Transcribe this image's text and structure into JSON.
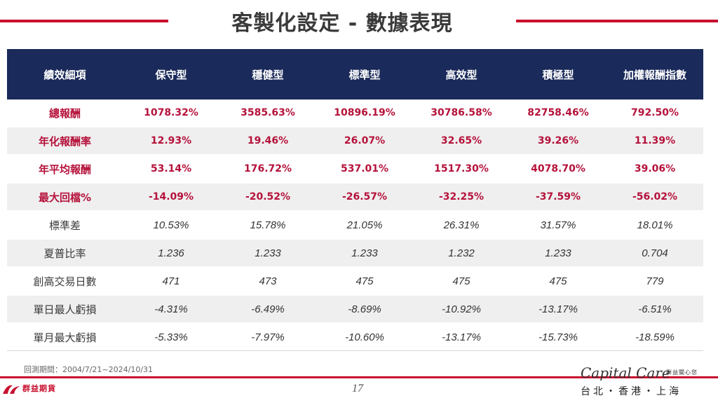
{
  "title": "客製化設定 - 數據表現",
  "table": {
    "headers": [
      "績效細項",
      "保守型",
      "穩健型",
      "標準型",
      "高效型",
      "積極型",
      "加權報酬指數"
    ],
    "rows": [
      {
        "label": "總報酬",
        "values": [
          "1078.32%",
          "3585.63%",
          "10896.19%",
          "30786.58%",
          "82758.46%",
          "792.50%"
        ]
      },
      {
        "label": "年化報酬率",
        "values": [
          "12.93%",
          "19.46%",
          "26.07%",
          "32.65%",
          "39.26%",
          "11.39%"
        ]
      },
      {
        "label": "年平均報酬",
        "values": [
          "53.14%",
          "176.72%",
          "537.01%",
          "1517.30%",
          "4078.70%",
          "39.06%"
        ]
      },
      {
        "label": "最大回檔%",
        "values": [
          "-14.09%",
          "-20.52%",
          "-26.57%",
          "-32.25%",
          "-37.59%",
          "-56.02%"
        ]
      },
      {
        "label": "標準差",
        "values": [
          "10.53%",
          "15.78%",
          "21.05%",
          "26.31%",
          "31.57%",
          "18.01%"
        ]
      },
      {
        "label": "夏普比率",
        "values": [
          "1.236",
          "1.233",
          "1.233",
          "1.232",
          "1.233",
          "0.704"
        ]
      },
      {
        "label": "創高交易日數",
        "values": [
          "471",
          "473",
          "475",
          "475",
          "475",
          "779"
        ]
      },
      {
        "label": "單日最人虧損",
        "values": [
          "-4.31%",
          "-6.49%",
          "-8.69%",
          "-10.92%",
          "-13.17%",
          "-6.51%"
        ]
      },
      {
        "label": "單月最大虧損",
        "values": [
          "-5.33%",
          "-7.97%",
          "-10.60%",
          "-13.17%",
          "-15.73%",
          "-18.59%"
        ]
      }
    ]
  },
  "footnote": "回測期間：2004/7/21~2024/10/31",
  "page_number": "17",
  "logo_left": {
    "text": "群益期貨",
    "icon": "company-logo-icon"
  },
  "brand": {
    "name": "Capital Care",
    "tagline": "群益關心您",
    "cities": "台北・香港・上海"
  },
  "colors": {
    "header_bg": "#1a2a5a",
    "accent_red": "#c8102e",
    "highlight_text": "#b5123b",
    "stripe": "#efefef"
  }
}
